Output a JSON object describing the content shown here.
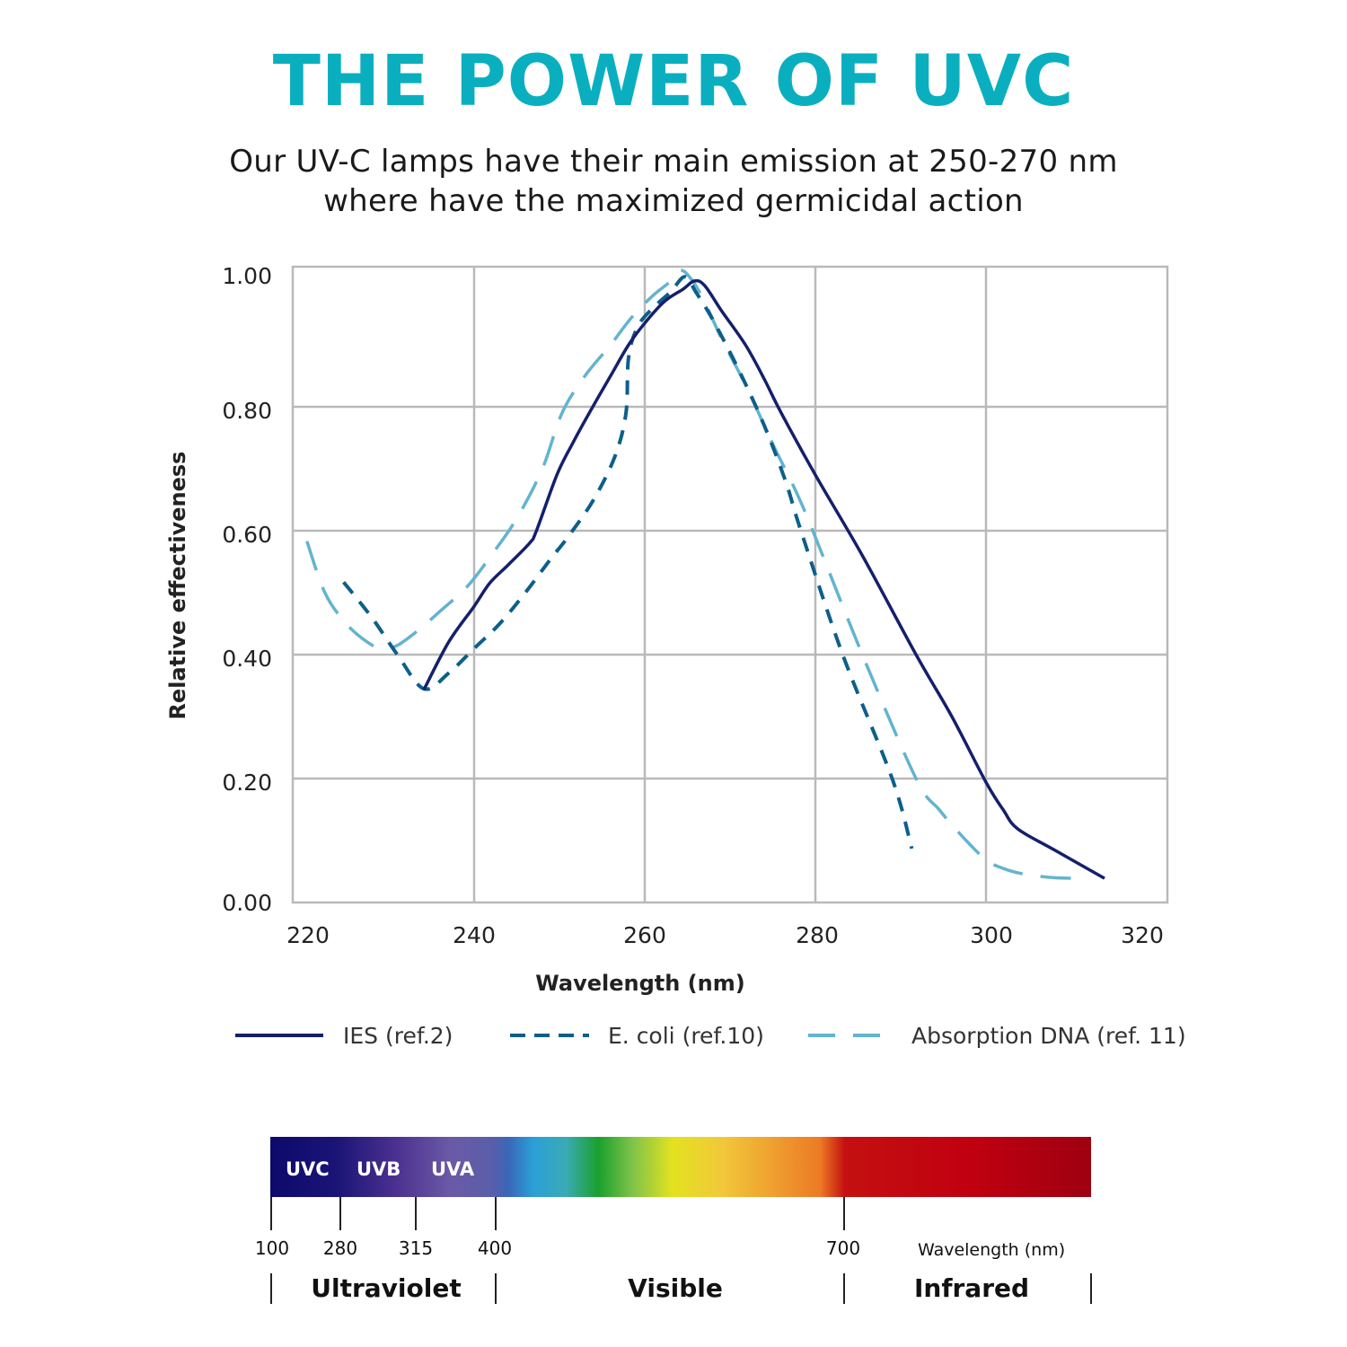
{
  "header": {
    "title": "THE POWER OF UVC",
    "subtitle_line1": "Our UV-C lamps have their main emission at 250-270 nm",
    "subtitle_line2": "where have the maximized germicidal action"
  },
  "colors": {
    "title": "#0aafbf",
    "ies": "#14206b",
    "ecoli": "#0d5f8a",
    "dna": "#62b4cf",
    "grid": "#b9b9b9"
  },
  "chart_data": {
    "type": "line",
    "title": "",
    "xlabel": "Wavelength (nm)",
    "ylabel": "Relative effectiveness",
    "xlim": [
      220,
      320
    ],
    "ylim": [
      0,
      1.0
    ],
    "x_ticks": [
      220,
      240,
      260,
      280,
      300,
      320
    ],
    "x_tick_labels": [
      "220",
      "240",
      "260",
      "280",
      "300",
      "320"
    ],
    "y_ticks": [
      0,
      0.2,
      0.4,
      0.6,
      0.8,
      1.0
    ],
    "y_tick_labels": [
      "0.00",
      "0.20",
      "0.40",
      "0.60",
      "0.80",
      "1.00"
    ],
    "grid": true,
    "legend_position": "bottom",
    "series": [
      {
        "name": "IES (ref.2)",
        "style": "solid",
        "x": [
          234.1,
          237,
          240,
          241.8,
          244,
          246.5,
          247.3,
          249.7,
          251.5,
          253.9,
          256,
          258.1,
          260,
          262.3,
          264.5,
          265.8,
          267,
          269,
          271.8,
          274,
          276,
          280,
          285.5,
          291.8,
          296,
          300,
          302,
          303.7,
          308,
          313.9
        ],
        "y": [
          0.343,
          0.42,
          0.478,
          0.515,
          0.545,
          0.58,
          0.6,
          0.69,
          0.74,
          0.8,
          0.85,
          0.9,
          0.935,
          0.97,
          0.99,
          1.003,
          0.996,
          0.955,
          0.9,
          0.845,
          0.79,
          0.69,
          0.56,
          0.4,
          0.3,
          0.194,
          0.15,
          0.119,
          0.085,
          0.039
        ]
      },
      {
        "name": "E. coli (ref.10)",
        "style": "dashed",
        "x": [
          224.7,
          228,
          231,
          234.1,
          237,
          240,
          243,
          246,
          249,
          251,
          254,
          256.5,
          257.8,
          258.1,
          259.2,
          261,
          263,
          264.7,
          266,
          268,
          271,
          274,
          276.5,
          278.3,
          283.2,
          289,
          291.3
        ],
        "y": [
          0.517,
          0.46,
          0.4,
          0.345,
          0.37,
          0.41,
          0.45,
          0.5,
          0.555,
          0.59,
          0.65,
          0.72,
          0.79,
          0.88,
          0.93,
          0.96,
          0.985,
          1.01,
          0.985,
          0.94,
          0.86,
          0.77,
          0.68,
          0.6,
          0.4,
          0.2,
          0.087
        ]
      },
      {
        "name": "Absorption DNA (ref. 11)",
        "style": "long-dashed",
        "x": [
          220.4,
          222.5,
          225,
          227.5,
          229.2,
          231,
          233.5,
          236,
          239.2,
          242,
          245,
          248,
          250.3,
          253,
          256,
          258.5,
          261,
          262.8,
          264.2,
          265.5,
          267,
          269,
          272,
          275,
          277.5,
          279.7,
          285.5,
          291.8,
          294.5,
          297,
          299.9,
          302,
          304.4,
          308,
          311.3
        ],
        "y": [
          0.583,
          0.5,
          0.45,
          0.42,
          0.41,
          0.415,
          0.44,
          0.47,
          0.51,
          0.56,
          0.62,
          0.7,
          0.79,
          0.85,
          0.9,
          0.945,
          0.98,
          1.0,
          1.02,
          1.005,
          0.97,
          0.91,
          0.83,
          0.74,
          0.67,
          0.6,
          0.4,
          0.2,
          0.15,
          0.11,
          0.07,
          0.055,
          0.046,
          0.04,
          0.039
        ]
      }
    ]
  },
  "spectrum": {
    "bands": [
      "UVC",
      "UVB",
      "UVA"
    ],
    "wavelength_marks": [
      "100",
      "280",
      "315",
      "400",
      "700"
    ],
    "axis_label": "Wavelength (nm)",
    "regions": [
      "Ultraviolet",
      "Visible",
      "Infrared"
    ]
  }
}
